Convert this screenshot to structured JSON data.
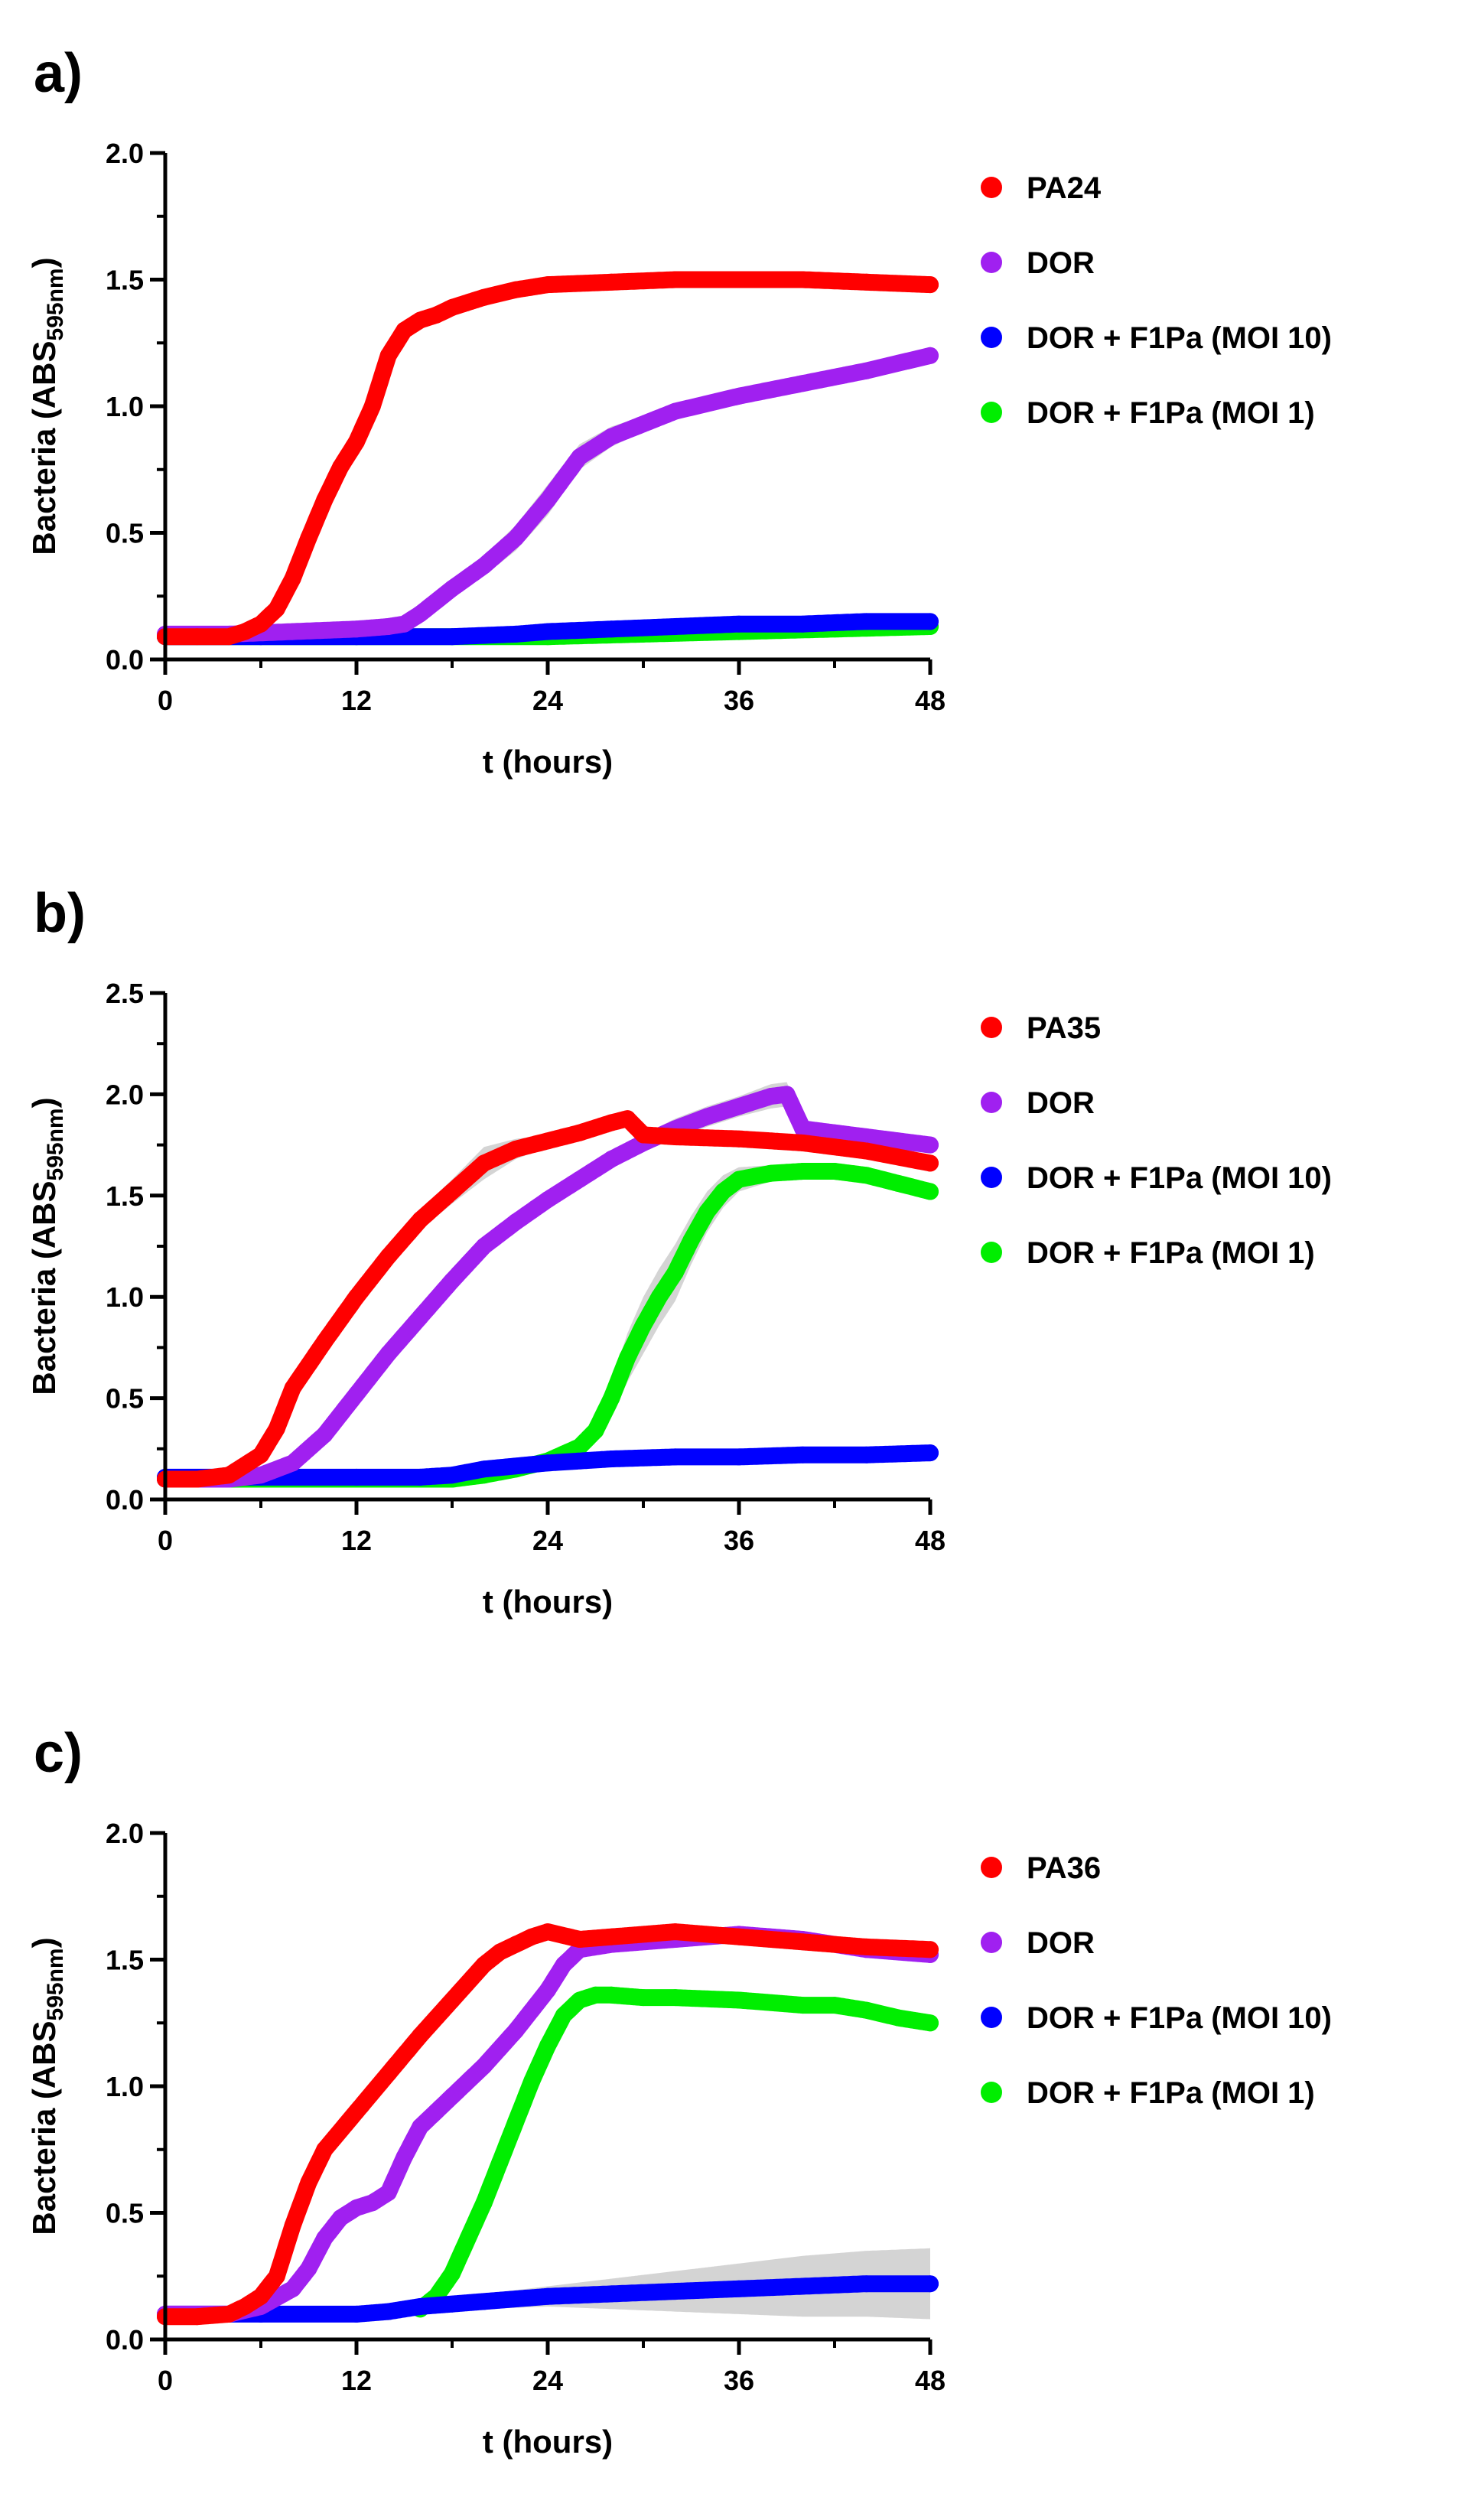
{
  "legend_colors": {
    "PA": "#ff0000",
    "DOR": "#a020f0",
    "MOI10": "#0000ff",
    "MOI1": "#00ee00"
  },
  "error_band_color": "#cccccc",
  "chart_data": [
    {
      "panel_label": "a)",
      "type": "scatter",
      "xlabel": "t (hours)",
      "ylabel_main": "Bacteria (ABS",
      "ylabel_sub": "595nm",
      "ylabel_end": ")",
      "xlim": [
        0,
        48
      ],
      "ylim": [
        0,
        2.0
      ],
      "xticks": [
        0,
        12,
        24,
        36,
        48
      ],
      "xtick_labels": [
        "0",
        "12",
        "24",
        "36",
        "48"
      ],
      "yticks": [
        0,
        0.5,
        1.0,
        1.5,
        2.0
      ],
      "ytick_labels": [
        "0.0",
        "0.5",
        "1.0",
        "1.5",
        "2.0"
      ],
      "legend_placement": "right",
      "series": [
        {
          "name": "PA24",
          "color": "#ff0000",
          "x": [
            0,
            2,
            4,
            5,
            6,
            7,
            8,
            9,
            10,
            11,
            12,
            13,
            14,
            15,
            16,
            17,
            18,
            20,
            22,
            24,
            28,
            32,
            36,
            40,
            44,
            48
          ],
          "y": [
            0.09,
            0.09,
            0.09,
            0.11,
            0.14,
            0.2,
            0.32,
            0.48,
            0.63,
            0.76,
            0.86,
            1.0,
            1.2,
            1.3,
            1.34,
            1.36,
            1.39,
            1.43,
            1.46,
            1.48,
            1.49,
            1.5,
            1.5,
            1.5,
            1.49,
            1.48
          ],
          "err": [
            0,
            0,
            0,
            0,
            0,
            0,
            0.01,
            0.02,
            0.03,
            0.04,
            0.05,
            0.06,
            0.03,
            0.02,
            0.01,
            0.01,
            0.01,
            0.01,
            0.01,
            0.01,
            0.01,
            0.01,
            0.01,
            0.01,
            0.01,
            0.01
          ]
        },
        {
          "name": "DOR",
          "color": "#a020f0",
          "x": [
            0,
            4,
            8,
            12,
            14,
            15,
            16,
            18,
            20,
            22,
            24,
            26,
            28,
            32,
            36,
            40,
            44,
            48
          ],
          "y": [
            0.1,
            0.1,
            0.11,
            0.12,
            0.13,
            0.14,
            0.18,
            0.28,
            0.37,
            0.48,
            0.63,
            0.8,
            0.88,
            0.98,
            1.04,
            1.09,
            1.14,
            1.2
          ],
          "err": [
            0,
            0,
            0,
            0,
            0,
            0.01,
            0.02,
            0.03,
            0.04,
            0.05,
            0.06,
            0.05,
            0.04,
            0.02,
            0.01,
            0.01,
            0.01,
            0.01
          ]
        },
        {
          "name": "DOR + F1Pa (MOI 10)",
          "color": "#0000ff",
          "x": [
            0,
            6,
            12,
            18,
            22,
            24,
            28,
            32,
            36,
            40,
            44,
            48
          ],
          "y": [
            0.09,
            0.09,
            0.09,
            0.09,
            0.1,
            0.11,
            0.12,
            0.13,
            0.14,
            0.14,
            0.15,
            0.15
          ],
          "err": [
            0,
            0,
            0,
            0,
            0,
            0,
            0,
            0,
            0,
            0,
            0,
            0
          ]
        },
        {
          "name": "DOR + F1Pa (MOI 1)",
          "color": "#00ee00",
          "x": [
            0,
            6,
            12,
            18,
            24,
            30,
            36,
            42,
            48
          ],
          "y": [
            0.09,
            0.09,
            0.09,
            0.09,
            0.09,
            0.1,
            0.11,
            0.12,
            0.13
          ],
          "err": [
            0,
            0,
            0,
            0,
            0,
            0,
            0,
            0,
            0
          ]
        }
      ]
    },
    {
      "panel_label": "b)",
      "type": "scatter",
      "xlabel": "t (hours)",
      "ylabel_main": "Bacteria (ABS",
      "ylabel_sub": "595nm",
      "ylabel_end": ")",
      "xlim": [
        0,
        48
      ],
      "ylim": [
        0,
        2.5
      ],
      "xticks": [
        0,
        12,
        24,
        36,
        48
      ],
      "xtick_labels": [
        "0",
        "12",
        "24",
        "36",
        "48"
      ],
      "yticks": [
        0,
        0.5,
        1.0,
        1.5,
        2.0,
        2.5
      ],
      "ytick_labels": [
        "0.0",
        "0.5",
        "1.0",
        "1.5",
        "2.0",
        "2.5"
      ],
      "legend_placement": "right",
      "series": [
        {
          "name": "PA35",
          "color": "#ff0000",
          "x": [
            0,
            2,
            4,
            6,
            7,
            8,
            10,
            12,
            14,
            16,
            18,
            20,
            22,
            24,
            26,
            28,
            29,
            30,
            32,
            36,
            40,
            44,
            48
          ],
          "y": [
            0.1,
            0.1,
            0.12,
            0.22,
            0.35,
            0.55,
            0.78,
            1.0,
            1.2,
            1.38,
            1.52,
            1.66,
            1.73,
            1.77,
            1.81,
            1.86,
            1.88,
            1.8,
            1.79,
            1.78,
            1.76,
            1.72,
            1.66
          ],
          "err": [
            0,
            0,
            0,
            0.01,
            0.01,
            0.02,
            0.03,
            0.04,
            0.04,
            0.05,
            0.06,
            0.08,
            0.05,
            0.03,
            0.02,
            0.02,
            0.02,
            0.02,
            0.02,
            0.02,
            0.02,
            0.02,
            0.02
          ]
        },
        {
          "name": "DOR",
          "color": "#a020f0",
          "x": [
            0,
            4,
            6,
            8,
            10,
            12,
            14,
            16,
            18,
            20,
            22,
            24,
            26,
            28,
            30,
            32,
            34,
            36,
            38,
            39,
            40,
            44,
            48
          ],
          "y": [
            0.1,
            0.1,
            0.12,
            0.18,
            0.32,
            0.52,
            0.72,
            0.9,
            1.08,
            1.25,
            1.37,
            1.48,
            1.58,
            1.68,
            1.76,
            1.83,
            1.89,
            1.94,
            1.99,
            2.0,
            1.83,
            1.79,
            1.75
          ],
          "err": [
            0,
            0,
            0,
            0.01,
            0.01,
            0.02,
            0.03,
            0.03,
            0.03,
            0.03,
            0.04,
            0.04,
            0.04,
            0.04,
            0.04,
            0.05,
            0.05,
            0.05,
            0.06,
            0.06,
            0.03,
            0.02,
            0.02
          ]
        },
        {
          "name": "DOR + F1Pa (MOI 10)",
          "color": "#0000ff",
          "x": [
            0,
            6,
            12,
            16,
            18,
            20,
            24,
            28,
            32,
            36,
            40,
            44,
            48
          ],
          "y": [
            0.11,
            0.11,
            0.11,
            0.11,
            0.12,
            0.15,
            0.18,
            0.2,
            0.21,
            0.21,
            0.22,
            0.22,
            0.23
          ],
          "err": [
            0,
            0,
            0,
            0,
            0,
            0.01,
            0.01,
            0.01,
            0.01,
            0.01,
            0.01,
            0.01,
            0.01
          ]
        },
        {
          "name": "DOR + F1Pa (MOI 1)",
          "color": "#00ee00",
          "x": [
            0,
            6,
            12,
            18,
            20,
            22,
            24,
            26,
            27,
            28,
            29,
            30,
            31,
            32,
            33,
            34,
            35,
            36,
            38,
            40,
            42,
            44,
            46,
            48
          ],
          "y": [
            0.1,
            0.1,
            0.1,
            0.1,
            0.12,
            0.15,
            0.19,
            0.26,
            0.34,
            0.5,
            0.7,
            0.86,
            1.0,
            1.12,
            1.28,
            1.42,
            1.52,
            1.58,
            1.61,
            1.62,
            1.62,
            1.6,
            1.56,
            1.52
          ],
          "err": [
            0,
            0,
            0,
            0,
            0,
            0.01,
            0.01,
            0.02,
            0.04,
            0.08,
            0.12,
            0.14,
            0.14,
            0.14,
            0.12,
            0.1,
            0.08,
            0.06,
            0.04,
            0.03,
            0.03,
            0.03,
            0.03,
            0.03
          ]
        }
      ]
    },
    {
      "panel_label": "c)",
      "type": "scatter",
      "xlabel": "t (hours)",
      "ylabel_main": "Bacteria (ABS",
      "ylabel_sub": "595nm",
      "ylabel_end": ")",
      "xlim": [
        0,
        48
      ],
      "ylim": [
        0,
        2.0
      ],
      "xticks": [
        0,
        12,
        24,
        36,
        48
      ],
      "xtick_labels": [
        "0",
        "12",
        "24",
        "36",
        "48"
      ],
      "yticks": [
        0,
        0.5,
        1.0,
        1.5,
        2.0
      ],
      "ytick_labels": [
        "0.0",
        "0.5",
        "1.0",
        "1.5",
        "2.0"
      ],
      "legend_placement": "right",
      "series": [
        {
          "name": "PA36",
          "color": "#ff0000",
          "x": [
            0,
            2,
            4,
            5,
            6,
            7,
            8,
            9,
            10,
            12,
            14,
            16,
            18,
            20,
            21,
            22,
            23,
            24,
            26,
            28,
            32,
            36,
            40,
            44,
            48
          ],
          "y": [
            0.09,
            0.09,
            0.1,
            0.13,
            0.17,
            0.25,
            0.45,
            0.62,
            0.75,
            0.9,
            1.05,
            1.2,
            1.34,
            1.48,
            1.53,
            1.56,
            1.59,
            1.61,
            1.58,
            1.59,
            1.61,
            1.59,
            1.57,
            1.55,
            1.54
          ],
          "err": [
            0,
            0,
            0,
            0,
            0.01,
            0.01,
            0.02,
            0.02,
            0.02,
            0.02,
            0.02,
            0.02,
            0.02,
            0.02,
            0.02,
            0.02,
            0.02,
            0.02,
            0.02,
            0.02,
            0.02,
            0.02,
            0.02,
            0.02,
            0.02
          ]
        },
        {
          "name": "DOR",
          "color": "#a020f0",
          "x": [
            0,
            4,
            6,
            8,
            9,
            10,
            11,
            12,
            13,
            14,
            15,
            16,
            17,
            18,
            20,
            22,
            24,
            25,
            26,
            28,
            32,
            36,
            40,
            44,
            48
          ],
          "y": [
            0.1,
            0.1,
            0.13,
            0.2,
            0.28,
            0.4,
            0.48,
            0.52,
            0.54,
            0.58,
            0.72,
            0.84,
            0.9,
            0.96,
            1.08,
            1.22,
            1.38,
            1.48,
            1.54,
            1.56,
            1.58,
            1.6,
            1.58,
            1.54,
            1.52
          ],
          "err": [
            0,
            0,
            0,
            0.01,
            0.01,
            0.02,
            0.02,
            0.02,
            0.02,
            0.02,
            0.02,
            0.02,
            0.02,
            0.02,
            0.02,
            0.02,
            0.03,
            0.03,
            0.03,
            0.03,
            0.03,
            0.03,
            0.03,
            0.03,
            0.03
          ]
        },
        {
          "name": "DOR + F1Pa (MOI 10)",
          "color": "#0000ff",
          "x": [
            0,
            6,
            12,
            14,
            16,
            18,
            20,
            24,
            28,
            32,
            36,
            40,
            44,
            48
          ],
          "y": [
            0.1,
            0.1,
            0.1,
            0.11,
            0.13,
            0.14,
            0.15,
            0.17,
            0.18,
            0.19,
            0.2,
            0.21,
            0.22,
            0.22
          ],
          "err": [
            0,
            0,
            0,
            0,
            0.01,
            0.02,
            0.03,
            0.04,
            0.06,
            0.08,
            0.1,
            0.12,
            0.13,
            0.14
          ]
        },
        {
          "name": "DOR + F1Pa (MOI 1)",
          "color": "#00ee00",
          "x": [
            16,
            17,
            18,
            19,
            20,
            21,
            22,
            23,
            24,
            25,
            26,
            27,
            28,
            30,
            32,
            36,
            40,
            42,
            44,
            46,
            48
          ],
          "y": [
            0.12,
            0.17,
            0.26,
            0.4,
            0.54,
            0.7,
            0.86,
            1.02,
            1.16,
            1.28,
            1.34,
            1.36,
            1.36,
            1.35,
            1.35,
            1.34,
            1.32,
            1.32,
            1.3,
            1.27,
            1.25
          ],
          "err": [
            0,
            0,
            0.01,
            0.01,
            0.02,
            0.02,
            0.02,
            0.02,
            0.02,
            0.02,
            0.02,
            0.02,
            0.02,
            0.02,
            0.02,
            0.02,
            0.03,
            0.03,
            0.03,
            0.03,
            0.03
          ]
        }
      ]
    }
  ]
}
